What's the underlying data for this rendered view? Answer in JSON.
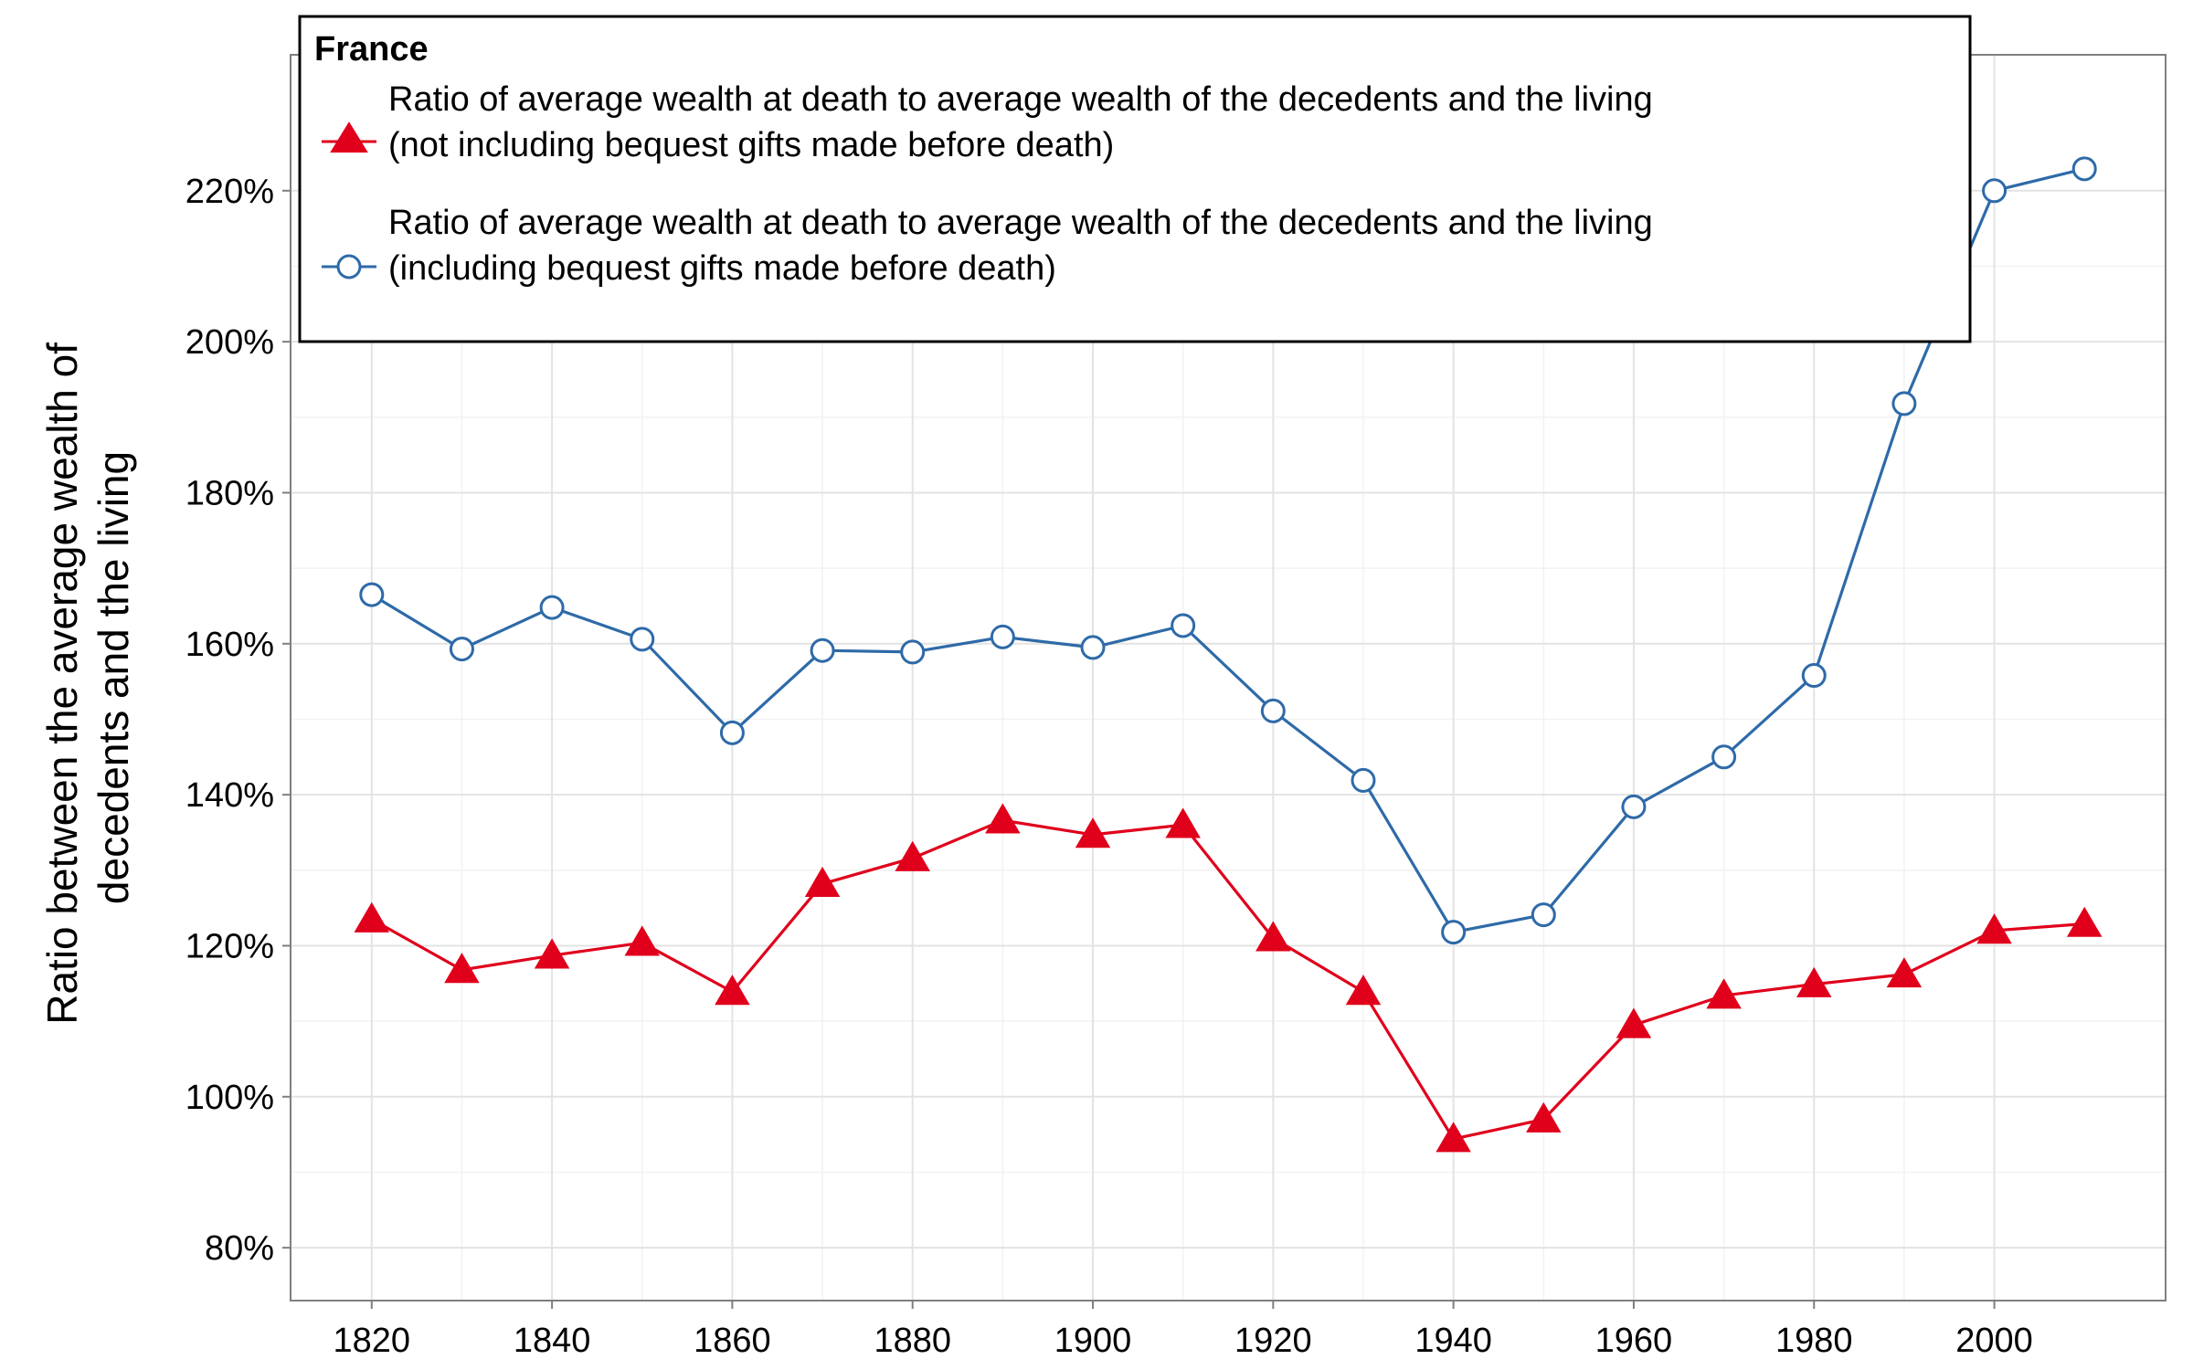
{
  "chart_data": {
    "type": "line",
    "title": "",
    "xlabel": "",
    "ylabel": [
      "Ratio between the average wealth of",
      "decedents and the living"
    ],
    "x": [
      1820,
      1830,
      1840,
      1850,
      1860,
      1870,
      1880,
      1890,
      1900,
      1910,
      1920,
      1930,
      1940,
      1950,
      1960,
      1970,
      1980,
      1990,
      2000,
      2010
    ],
    "xlim": [
      1811,
      2019
    ],
    "ylim": [
      73,
      238
    ],
    "x_ticks": [
      1820,
      1840,
      1860,
      1880,
      1900,
      1920,
      1940,
      1960,
      1980,
      2000
    ],
    "y_ticks": [
      80,
      100,
      120,
      140,
      160,
      180,
      200,
      220
    ],
    "x_tick_labels": [
      "1820",
      "1840",
      "1860",
      "1880",
      "1900",
      "1920",
      "1940",
      "1960",
      "1980",
      "2000"
    ],
    "y_tick_labels": [
      "80%",
      "100%",
      "120%",
      "140%",
      "160%",
      "180%",
      "200%",
      "220%"
    ],
    "grid": true,
    "legend": {
      "title": "France",
      "position": "top-left",
      "entries": [
        {
          "lines": [
            "Ratio of average wealth at death to average wealth of the decedents and the living",
            "(not including bequest gifts made before death)"
          ],
          "marker": "triangle-filled",
          "color": "#e0001b"
        },
        {
          "lines": [
            "Ratio of average wealth at death to average wealth of the decedents and the living",
            "(including bequest gifts made before death)"
          ],
          "marker": "circle-open",
          "color": "#2e6aa8"
        }
      ]
    },
    "series": [
      {
        "name": "Ratio of average wealth at death to average wealth of the decedents and the living (not including bequest gifts made before death)",
        "color": "#e0001b",
        "marker": "triangle-filled",
        "values": [
          123.5,
          116.8,
          118.7,
          120.4,
          113.9,
          128.2,
          131.6,
          136.6,
          134.7,
          136.0,
          121.0,
          113.9,
          94.4,
          97.0,
          109.5,
          113.4,
          114.9,
          116.2,
          122.0,
          122.9
        ]
      },
      {
        "name": "Ratio of average wealth at death to average wealth of the decedents and the living (including bequest gifts made before death)",
        "color": "#2e6aa8",
        "marker": "circle-open",
        "values": [
          166.5,
          159.3,
          164.8,
          160.6,
          148.2,
          159.1,
          158.9,
          160.9,
          159.5,
          162.4,
          151.1,
          141.9,
          121.8,
          124.1,
          138.4,
          145.0,
          155.8,
          191.8,
          220.0,
          222.9
        ]
      }
    ]
  }
}
